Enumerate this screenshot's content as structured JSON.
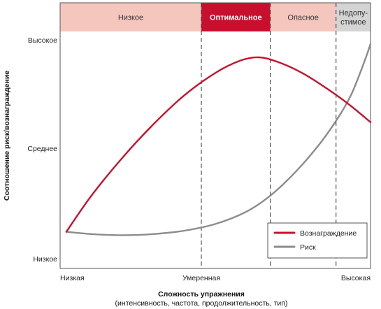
{
  "chart_data": {
    "type": "line",
    "xlabel": "Сложность упражнения",
    "xlabel_sub": "(интенсивность, частота, продолжительность, тип)",
    "ylabel": "Соотношение риск/вознаграждение",
    "x_ticks": [
      "Низкая",
      "Умеренная",
      "Высокая"
    ],
    "y_ticks": [
      "Низкое",
      "Среднее",
      "Высокое"
    ],
    "xlim": [
      0,
      1
    ],
    "ylim": [
      0,
      1
    ],
    "zones": [
      {
        "label": "Низкое",
        "from": 0.0,
        "to": 0.455,
        "color": "#f5c6bd"
      },
      {
        "label": "Оптимальное",
        "from": 0.455,
        "to": 0.677,
        "color": "#c8102e"
      },
      {
        "label": "Опасное",
        "from": 0.677,
        "to": 0.889,
        "color": "#f5c6bd"
      },
      {
        "label": "Недопу-стимое",
        "label_lines": [
          "Недопу-",
          "стимое"
        ],
        "from": 0.889,
        "to": 1.0,
        "color": "#d4d4d4"
      }
    ],
    "series": [
      {
        "name": "Вознаграждение",
        "color": "#c8102e",
        "x": [
          0.02,
          0.1,
          0.2,
          0.3,
          0.4,
          0.5,
          0.58,
          0.64,
          0.7,
          0.78,
          0.86,
          0.93,
          1.0
        ],
        "y": [
          0.12,
          0.28,
          0.45,
          0.6,
          0.73,
          0.83,
          0.885,
          0.9,
          0.88,
          0.83,
          0.76,
          0.69,
          0.61
        ]
      },
      {
        "name": "Риск",
        "color": "#8c8c8c",
        "x": [
          0.02,
          0.1,
          0.2,
          0.3,
          0.4,
          0.5,
          0.6,
          0.68,
          0.76,
          0.84,
          0.9,
          0.94,
          0.98,
          1.0
        ],
        "y": [
          0.12,
          0.11,
          0.105,
          0.11,
          0.125,
          0.155,
          0.21,
          0.285,
          0.39,
          0.52,
          0.64,
          0.74,
          0.88,
          0.96
        ]
      }
    ],
    "legend": "bottom-right",
    "grid": false
  }
}
